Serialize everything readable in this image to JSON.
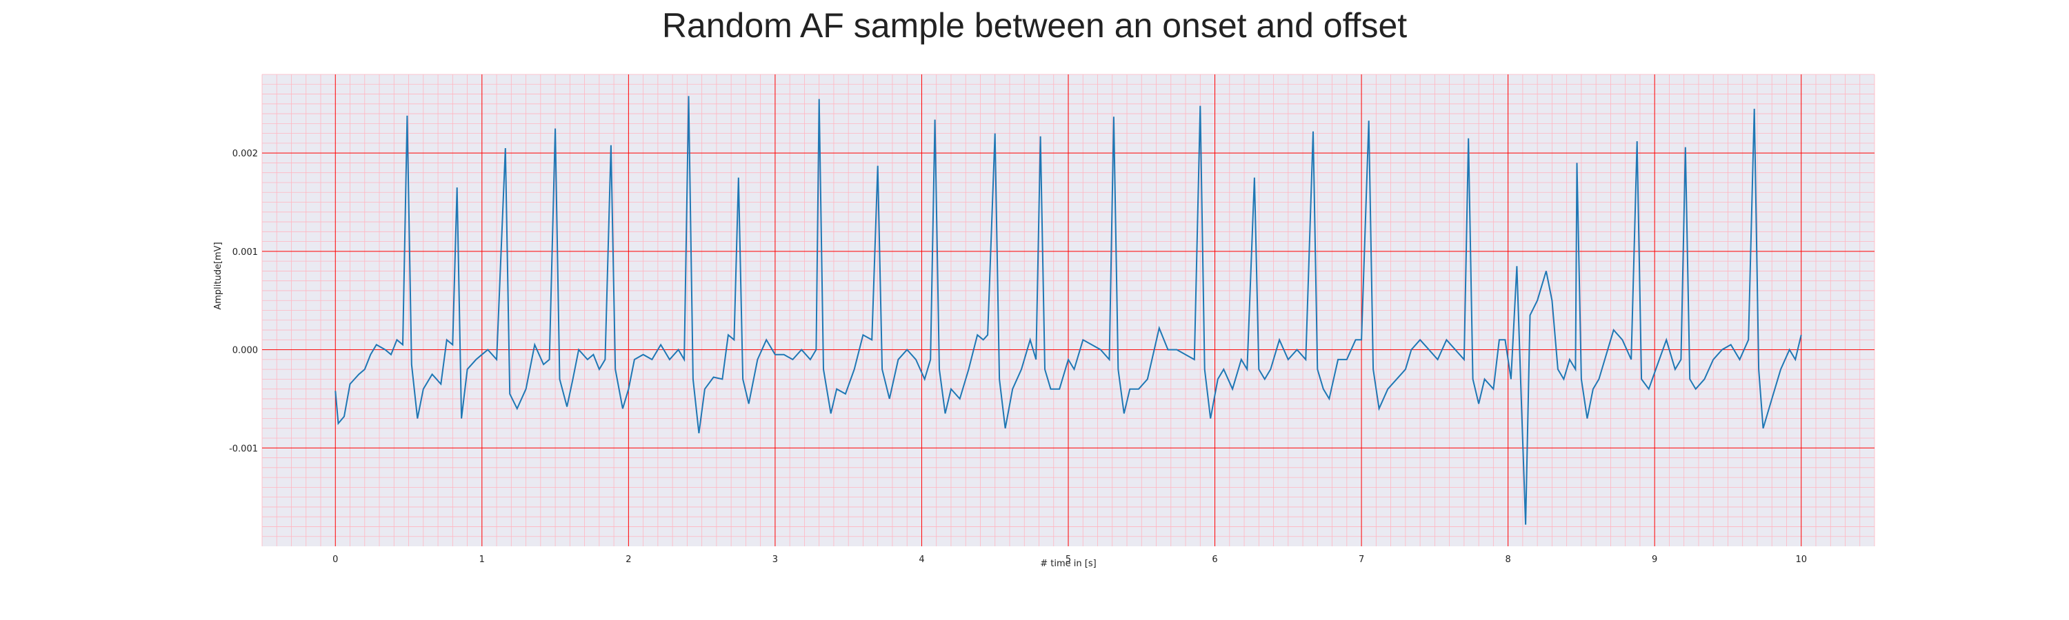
{
  "chart_data": {
    "type": "line",
    "title": "Random AF sample between an onset and offset",
    "xlabel": "# time in [s]",
    "ylabel": "Amplitude[mV]",
    "xlim": [
      -0.5,
      10.5
    ],
    "ylim": [
      -0.002,
      0.0028
    ],
    "xticks": [
      0,
      1,
      2,
      3,
      4,
      5,
      6,
      7,
      8,
      9,
      10
    ],
    "xtick_labels": [
      "0",
      "1",
      "2",
      "3",
      "4",
      "5",
      "6",
      "7",
      "8",
      "9",
      "10"
    ],
    "yticks": [
      -0.001,
      0.0,
      0.001,
      0.002
    ],
    "ytick_labels": [
      "-0.001",
      "0.000",
      "0.001",
      "0.002"
    ],
    "grid": true,
    "grid_major_color": "#ff0000",
    "grid_minor_color": "#ffb6c1",
    "background_color": "#eaeaf2",
    "series": [
      {
        "name": "",
        "color": "#1f77b4",
        "points": [
          [
            0.0,
            -0.00042
          ],
          [
            0.02,
            -0.00075
          ],
          [
            0.06,
            -0.00068
          ],
          [
            0.1,
            -0.00035
          ],
          [
            0.16,
            -0.00025
          ],
          [
            0.2,
            -0.0002
          ],
          [
            0.24,
            -5e-05
          ],
          [
            0.28,
            5e-05
          ],
          [
            0.34,
            0.0
          ],
          [
            0.38,
            -5e-05
          ],
          [
            0.42,
            0.0001
          ],
          [
            0.46,
            5e-05
          ],
          [
            0.49,
            0.00238
          ],
          [
            0.52,
            -0.00015
          ],
          [
            0.56,
            -0.0007
          ],
          [
            0.6,
            -0.0004
          ],
          [
            0.66,
            -0.00025
          ],
          [
            0.72,
            -0.00035
          ],
          [
            0.76,
            0.0001
          ],
          [
            0.8,
            5e-05
          ],
          [
            0.83,
            0.00165
          ],
          [
            0.86,
            -0.0007
          ],
          [
            0.9,
            -0.0002
          ],
          [
            0.96,
            -0.0001
          ],
          [
            1.0,
            -5e-05
          ],
          [
            1.04,
            0.0
          ],
          [
            1.1,
            -0.0001
          ],
          [
            1.16,
            0.00205
          ],
          [
            1.19,
            -0.00045
          ],
          [
            1.24,
            -0.0006
          ],
          [
            1.3,
            -0.0004
          ],
          [
            1.36,
            5e-05
          ],
          [
            1.42,
            -0.00015
          ],
          [
            1.46,
            -0.0001
          ],
          [
            1.5,
            0.00225
          ],
          [
            1.53,
            -0.0003
          ],
          [
            1.58,
            -0.00058
          ],
          [
            1.62,
            -0.0003
          ],
          [
            1.66,
            0.0
          ],
          [
            1.72,
            -0.0001
          ],
          [
            1.76,
            -5e-05
          ],
          [
            1.8,
            -0.0002
          ],
          [
            1.84,
            -0.0001
          ],
          [
            1.88,
            0.00208
          ],
          [
            1.91,
            -0.0002
          ],
          [
            1.96,
            -0.0006
          ],
          [
            2.0,
            -0.0004
          ],
          [
            2.04,
            -0.0001
          ],
          [
            2.1,
            -5e-05
          ],
          [
            2.16,
            -0.0001
          ],
          [
            2.22,
            5e-05
          ],
          [
            2.28,
            -0.0001
          ],
          [
            2.34,
            0.0
          ],
          [
            2.38,
            -0.0001
          ],
          [
            2.41,
            0.00258
          ],
          [
            2.44,
            -0.0003
          ],
          [
            2.48,
            -0.00085
          ],
          [
            2.52,
            -0.0004
          ],
          [
            2.58,
            -0.00028
          ],
          [
            2.64,
            -0.0003
          ],
          [
            2.68,
            0.00015
          ],
          [
            2.72,
            0.0001
          ],
          [
            2.75,
            0.00175
          ],
          [
            2.78,
            -0.0003
          ],
          [
            2.82,
            -0.00055
          ],
          [
            2.88,
            -0.0001
          ],
          [
            2.94,
            0.0001
          ],
          [
            3.0,
            -5e-05
          ],
          [
            3.06,
            -5e-05
          ],
          [
            3.12,
            -0.0001
          ],
          [
            3.18,
            0.0
          ],
          [
            3.24,
            -0.0001
          ],
          [
            3.28,
            0.0
          ],
          [
            3.3,
            0.00255
          ],
          [
            3.33,
            -0.0002
          ],
          [
            3.38,
            -0.00065
          ],
          [
            3.42,
            -0.0004
          ],
          [
            3.48,
            -0.00045
          ],
          [
            3.54,
            -0.0002
          ],
          [
            3.6,
            0.00015
          ],
          [
            3.66,
            0.0001
          ],
          [
            3.7,
            0.00187
          ],
          [
            3.73,
            -0.0002
          ],
          [
            3.78,
            -0.0005
          ],
          [
            3.84,
            -0.0001
          ],
          [
            3.9,
            0.0
          ],
          [
            3.96,
            -0.0001
          ],
          [
            4.02,
            -0.0003
          ],
          [
            4.06,
            -0.0001
          ],
          [
            4.09,
            0.00234
          ],
          [
            4.12,
            -0.0002
          ],
          [
            4.16,
            -0.00065
          ],
          [
            4.2,
            -0.0004
          ],
          [
            4.26,
            -0.0005
          ],
          [
            4.32,
            -0.0002
          ],
          [
            4.38,
            0.00015
          ],
          [
            4.42,
            0.0001
          ],
          [
            4.45,
            0.00015
          ],
          [
            4.5,
            0.0022
          ],
          [
            4.53,
            -0.0003
          ],
          [
            4.57,
            -0.0008
          ],
          [
            4.62,
            -0.0004
          ],
          [
            4.68,
            -0.0002
          ],
          [
            4.74,
            0.0001
          ],
          [
            4.78,
            -0.0001
          ],
          [
            4.81,
            0.00217
          ],
          [
            4.84,
            -0.0002
          ],
          [
            4.88,
            -0.0004
          ],
          [
            4.94,
            -0.0004
          ],
          [
            5.0,
            -0.0001
          ],
          [
            5.04,
            -0.0002
          ],
          [
            5.1,
            0.0001
          ],
          [
            5.16,
            5e-05
          ],
          [
            5.22,
            0.0
          ],
          [
            5.28,
            -0.0001
          ],
          [
            5.31,
            0.00237
          ],
          [
            5.34,
            -0.0002
          ],
          [
            5.38,
            -0.00065
          ],
          [
            5.42,
            -0.0004
          ],
          [
            5.48,
            -0.0004
          ],
          [
            5.54,
            -0.0003
          ],
          [
            5.62,
            0.00022
          ],
          [
            5.68,
            0.0
          ],
          [
            5.74,
            0.0
          ],
          [
            5.8,
            -5e-05
          ],
          [
            5.86,
            -0.0001
          ],
          [
            5.9,
            0.00248
          ],
          [
            5.93,
            -0.0002
          ],
          [
            5.97,
            -0.0007
          ],
          [
            6.02,
            -0.0003
          ],
          [
            6.06,
            -0.0002
          ],
          [
            6.12,
            -0.0004
          ],
          [
            6.18,
            -0.0001
          ],
          [
            6.22,
            -0.0002
          ],
          [
            6.27,
            0.00175
          ],
          [
            6.3,
            -0.0002
          ],
          [
            6.34,
            -0.0003
          ],
          [
            6.38,
            -0.0002
          ],
          [
            6.44,
            0.0001
          ],
          [
            6.5,
            -0.0001
          ],
          [
            6.56,
            0.0
          ],
          [
            6.62,
            -0.0001
          ],
          [
            6.67,
            0.00222
          ],
          [
            6.7,
            -0.0002
          ],
          [
            6.74,
            -0.0004
          ],
          [
            6.78,
            -0.0005
          ],
          [
            6.84,
            -0.0001
          ],
          [
            6.9,
            -0.0001
          ],
          [
            6.96,
            0.0001
          ],
          [
            7.0,
            0.0001
          ],
          [
            7.05,
            0.00233
          ],
          [
            7.08,
            -0.0002
          ],
          [
            7.12,
            -0.0006
          ],
          [
            7.18,
            -0.0004
          ],
          [
            7.24,
            -0.0003
          ],
          [
            7.3,
            -0.0002
          ],
          [
            7.34,
            0.0
          ],
          [
            7.4,
            0.0001
          ],
          [
            7.46,
            0.0
          ],
          [
            7.52,
            -0.0001
          ],
          [
            7.58,
            0.0001
          ],
          [
            7.64,
            0.0
          ],
          [
            7.7,
            -0.0001
          ],
          [
            7.73,
            0.00215
          ],
          [
            7.76,
            -0.0003
          ],
          [
            7.8,
            -0.00055
          ],
          [
            7.84,
            -0.0003
          ],
          [
            7.9,
            -0.0004
          ],
          [
            7.94,
            0.0001
          ],
          [
            7.98,
            0.0001
          ],
          [
            8.02,
            -0.0003
          ],
          [
            8.06,
            0.00085
          ],
          [
            8.09,
            -0.0005
          ],
          [
            8.12,
            -0.00178
          ],
          [
            8.15,
            0.00035
          ],
          [
            8.2,
            0.0005
          ],
          [
            8.26,
            0.0008
          ],
          [
            8.3,
            0.0005
          ],
          [
            8.34,
            -0.0002
          ],
          [
            8.38,
            -0.0003
          ],
          [
            8.42,
            -0.0001
          ],
          [
            8.46,
            -0.0002
          ],
          [
            8.47,
            0.0019
          ],
          [
            8.5,
            -0.0003
          ],
          [
            8.54,
            -0.0007
          ],
          [
            8.58,
            -0.0004
          ],
          [
            8.62,
            -0.0003
          ],
          [
            8.66,
            -0.0001
          ],
          [
            8.72,
            0.0002
          ],
          [
            8.78,
            0.0001
          ],
          [
            8.84,
            -0.0001
          ],
          [
            8.88,
            0.00212
          ],
          [
            8.91,
            -0.0003
          ],
          [
            8.96,
            -0.0004
          ],
          [
            9.02,
            -0.00015
          ],
          [
            9.08,
            0.0001
          ],
          [
            9.14,
            -0.0002
          ],
          [
            9.18,
            -0.0001
          ],
          [
            9.21,
            0.00206
          ],
          [
            9.24,
            -0.0003
          ],
          [
            9.28,
            -0.0004
          ],
          [
            9.34,
            -0.0003
          ],
          [
            9.4,
            -0.0001
          ],
          [
            9.46,
            0.0
          ],
          [
            9.52,
            5e-05
          ],
          [
            9.58,
            -0.0001
          ],
          [
            9.64,
            0.0001
          ],
          [
            9.68,
            0.00245
          ],
          [
            9.71,
            -0.0002
          ],
          [
            9.74,
            -0.0008
          ],
          [
            9.8,
            -0.0005
          ],
          [
            9.86,
            -0.0002
          ],
          [
            9.92,
            0.0
          ],
          [
            9.96,
            -0.0001
          ],
          [
            10.0,
            0.00015
          ]
        ]
      }
    ]
  }
}
